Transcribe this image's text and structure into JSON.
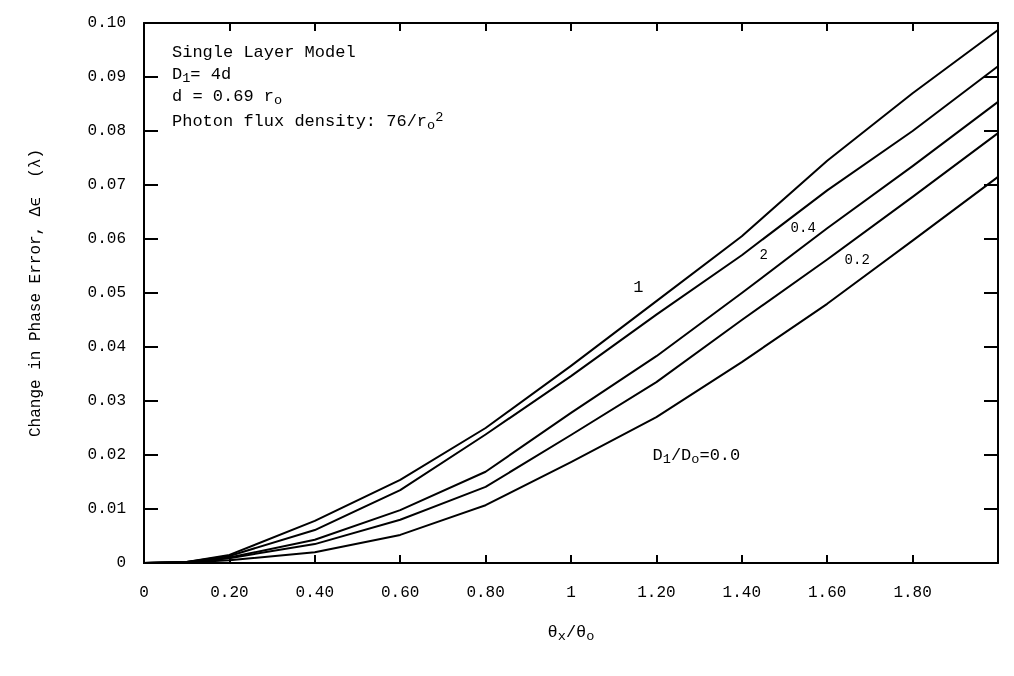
{
  "chart_data": {
    "type": "line",
    "xlabel": "θ$_{x}$/θ$_{o}$",
    "ylabel": "Change in Phase Error, Δϵ  (λ)",
    "annotations": [
      "Single Layer Model",
      "D$_{1}$= 4d",
      "d = 0.69 r$_{o}$",
      "Photon flux density: 76/r$_{o}$$^{2}$"
    ],
    "x": [
      0,
      0.1,
      0.2,
      0.4,
      0.6,
      0.8,
      1.0,
      1.2,
      1.4,
      1.6,
      1.8,
      2.0
    ],
    "series": [
      {
        "name": "1",
        "color": "#000000",
        "values": [
          0,
          0.0002,
          0.0015,
          0.0078,
          0.0154,
          0.025,
          0.0365,
          0.0485,
          0.0605,
          0.0745,
          0.087,
          0.0987
        ]
      },
      {
        "name": "2",
        "color": "#000000",
        "values": [
          0,
          0.0002,
          0.0013,
          0.0061,
          0.0135,
          0.0238,
          0.0346,
          0.046,
          0.057,
          0.069,
          0.08,
          0.092
        ]
      },
      {
        "name": "0.4",
        "color": "#000000",
        "values": [
          0,
          0.0002,
          0.001,
          0.0043,
          0.0098,
          0.0169,
          0.0278,
          0.0383,
          0.05,
          0.062,
          0.0735,
          0.0854
        ]
      },
      {
        "name": "0.2",
        "color": "#000000",
        "values": [
          0,
          0.0001,
          0.0009,
          0.0035,
          0.008,
          0.0141,
          0.0237,
          0.0335,
          0.045,
          0.0562,
          0.0678,
          0.0796
        ]
      },
      {
        "name": "D$_{1}$/D$_{o}$=0.0",
        "color": "#000000",
        "values": [
          0,
          0.0001,
          0.0005,
          0.002,
          0.0052,
          0.0107,
          0.0187,
          0.027,
          0.0372,
          0.048,
          0.0597,
          0.0715
        ]
      }
    ],
    "xlim": [
      0,
      2
    ],
    "xticks": [
      0,
      {
        "value": 0.2,
        "label": "0.20"
      },
      {
        "value": 0.4,
        "label": "0.40"
      },
      {
        "value": 0.6,
        "label": "0.60"
      },
      {
        "value": 0.8,
        "label": "0.80"
      },
      1,
      {
        "value": 1.2,
        "label": "1.20"
      },
      {
        "value": 1.4,
        "label": "1.40"
      },
      {
        "value": 1.6,
        "label": "1.60"
      },
      {
        "value": 1.8,
        "label": "1.80"
      },
      {
        "value": 2,
        "label": null
      }
    ],
    "ylim": [
      0,
      0.1
    ],
    "yticks": [
      0,
      0.01,
      0.02,
      0.03,
      0.04,
      0.05,
      0.06,
      0.07,
      0.08,
      0.09,
      {
        "value": 0.1,
        "label": "0.10"
      }
    ],
    "grid": false,
    "legend": false,
    "marker": "none",
    "line_style": "solid"
  }
}
